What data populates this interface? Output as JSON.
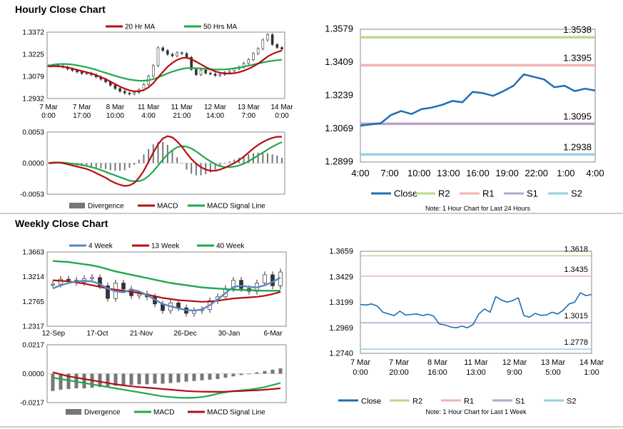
{
  "sections": {
    "hourly_title": "Hourly Close Chart",
    "weekly_title": "Weekly Close Chart"
  },
  "colors": {
    "ma_red": "#b40f14",
    "ma_green": "#1faa4a",
    "ma_blue": "#5b86c0",
    "close_blue": "#1f6eb2",
    "r2": "#bcd98e",
    "r1": "#f2b3b3",
    "s1": "#b9a3cf",
    "s2": "#94d2e0",
    "bar_gray": "#777777",
    "candle": "#333333"
  },
  "chart_data": [
    {
      "id": "hourly_price",
      "type": "line",
      "title": "",
      "legend": [
        "20 Hr MA",
        "50 Hrs MA"
      ],
      "y_ticks": [
        "1.3372",
        "1.3225",
        "1.3079",
        "1.2932"
      ],
      "ylim": [
        1.2932,
        1.3372
      ],
      "x_ticks": [
        [
          "7 Mar",
          "0:00"
        ],
        [
          "7 Mar",
          "17:00"
        ],
        [
          "8 Mar",
          "10:00"
        ],
        [
          "11 Mar",
          "4:00"
        ],
        [
          "11 Mar",
          "21:00"
        ],
        [
          "12 Mar",
          "14:00"
        ],
        [
          "13 Mar",
          "7:00"
        ],
        [
          "14 Mar",
          "0:00"
        ]
      ],
      "x_count": 8,
      "series": [
        {
          "name": "Close",
          "color_key": "candle",
          "values": [
            1.315,
            1.3152,
            1.3148,
            1.314,
            1.3128,
            1.3118,
            1.3108,
            1.3098,
            1.31,
            1.309,
            1.3075,
            1.306,
            1.3042,
            1.302,
            1.2998,
            1.298,
            1.2968,
            1.2962,
            1.2972,
            1.299,
            1.3025,
            1.308,
            1.315,
            1.3268,
            1.325,
            1.3225,
            1.3215,
            1.3235,
            1.323,
            1.3205,
            1.3125,
            1.309,
            1.312,
            1.31,
            1.3095,
            1.3085,
            1.3092,
            1.3105,
            1.3115,
            1.3128,
            1.314,
            1.3165,
            1.319,
            1.323,
            1.3262,
            1.332,
            1.3355,
            1.329,
            1.327,
            1.326
          ]
        },
        {
          "name": "20 Hr MA",
          "color_key": "ma_red",
          "values": [
            1.3145,
            1.3147,
            1.3146,
            1.3143,
            1.3138,
            1.313,
            1.3122,
            1.3114,
            1.3106,
            1.3097,
            1.3087,
            1.3074,
            1.306,
            1.3044,
            1.3027,
            1.3011,
            1.2997,
            1.2986,
            1.298,
            1.298,
            1.2988,
            1.3006,
            1.3034,
            1.3072,
            1.3108,
            1.3142,
            1.3168,
            1.3188,
            1.32,
            1.3203,
            1.3192,
            1.3176,
            1.3158,
            1.314,
            1.3125,
            1.3112,
            1.3103,
            1.3098,
            1.3097,
            1.31,
            1.3106,
            1.3116,
            1.3129,
            1.3145,
            1.3163,
            1.3186,
            1.321,
            1.3227,
            1.324,
            1.325
          ]
        },
        {
          "name": "50 Hrs MA",
          "color_key": "ma_green",
          "values": [
            1.315,
            1.3156,
            1.316,
            1.3161,
            1.316,
            1.3157,
            1.3152,
            1.3146,
            1.3139,
            1.3131,
            1.3122,
            1.3112,
            1.3102,
            1.3092,
            1.3082,
            1.3073,
            1.3065,
            1.3058,
            1.3053,
            1.305,
            1.305,
            1.3053,
            1.306,
            1.3072,
            1.3085,
            1.3098,
            1.311,
            1.312,
            1.3128,
            1.3133,
            1.3134,
            1.3133,
            1.3131,
            1.3128,
            1.3126,
            1.3124,
            1.3124,
            1.3125,
            1.3128,
            1.3132,
            1.3137,
            1.3143,
            1.315,
            1.3157,
            1.3164,
            1.3171,
            1.3177,
            1.3182,
            1.3186,
            1.3189
          ]
        }
      ]
    },
    {
      "id": "hourly_macd",
      "type": "line",
      "legend": [
        "Divergence",
        "MACD",
        "MACD Signal Line"
      ],
      "y_ticks": [
        "0.0053",
        "0.0000",
        "-0.0053"
      ],
      "ylim": [
        -0.0053,
        0.0053
      ],
      "series": [
        {
          "name": "MACD",
          "color_key": "ma_red",
          "values": [
            0.0,
            0.0001,
            0.0001,
            0.0,
            -0.0002,
            -0.0004,
            -0.0006,
            -0.0008,
            -0.001,
            -0.0013,
            -0.0017,
            -0.0021,
            -0.0025,
            -0.003,
            -0.0034,
            -0.0037,
            -0.0039,
            -0.0038,
            -0.0034,
            -0.0025,
            -0.0013,
            0.0002,
            0.0018,
            0.0032,
            0.0042,
            0.0046,
            0.0044,
            0.0037,
            0.0028,
            0.0017,
            0.0007,
            -0.0001,
            -0.0007,
            -0.0011,
            -0.0013,
            -0.0013,
            -0.0011,
            -0.0008,
            -0.0004,
            0.0,
            0.0005,
            0.0011,
            0.0018,
            0.0025,
            0.0031,
            0.0036,
            0.004,
            0.0043,
            0.0045,
            0.0045
          ]
        },
        {
          "name": "MACD Signal Line",
          "color_key": "ma_green",
          "values": [
            0.0,
            0.0,
            0.0001,
            0.0001,
            0.0,
            -0.0001,
            -0.0002,
            -0.0003,
            -0.0005,
            -0.0007,
            -0.0009,
            -0.0012,
            -0.0015,
            -0.0018,
            -0.0021,
            -0.0024,
            -0.0027,
            -0.003,
            -0.0031,
            -0.0031,
            -0.0028,
            -0.0022,
            -0.0014,
            -0.0004,
            0.0006,
            0.0015,
            0.0022,
            0.0027,
            0.0029,
            0.0028,
            0.0025,
            0.002,
            0.0014,
            0.0008,
            0.0003,
            -0.0002,
            -0.0005,
            -0.0007,
            -0.0007,
            -0.0006,
            -0.0004,
            -0.0001,
            0.0003,
            0.0008,
            0.0013,
            0.0018,
            0.0023,
            0.0028,
            0.0032,
            0.0036
          ]
        },
        {
          "name": "Divergence",
          "color_key": "bar_gray",
          "values": [
            0.0,
            0.0001,
            0.0,
            -0.0001,
            -0.0002,
            -0.0003,
            -0.0004,
            -0.0005,
            -0.0005,
            -0.0006,
            -0.0008,
            -0.0009,
            -0.001,
            -0.0012,
            -0.0013,
            -0.0013,
            -0.0012,
            -0.0008,
            -0.0003,
            0.0006,
            0.0015,
            0.0024,
            0.0032,
            0.0036,
            0.0036,
            0.0031,
            0.0022,
            0.001,
            -0.0001,
            -0.0011,
            -0.0018,
            -0.0021,
            -0.0021,
            -0.0019,
            -0.0016,
            -0.0011,
            -0.0006,
            -0.0001,
            0.0003,
            0.0006,
            0.0009,
            0.0012,
            0.0015,
            0.0017,
            0.0018,
            0.0018,
            0.0017,
            0.0015,
            0.0013,
            0.0009
          ]
        }
      ]
    },
    {
      "id": "hourly_pivot",
      "type": "line",
      "y_ticks": [
        "1.3579",
        "1.3409",
        "1.3239",
        "1.3069",
        "1.2899"
      ],
      "ylim": [
        1.2899,
        1.3579
      ],
      "x_ticks": [
        "4:00",
        "7:00",
        "10:00",
        "13:00",
        "16:00",
        "19:00",
        "22:00",
        "1:00",
        "4:00"
      ],
      "levels": [
        {
          "name": "R2",
          "value": 1.3538,
          "label": "1.3538",
          "color_key": "r2"
        },
        {
          "name": "R1",
          "value": 1.3395,
          "label": "1.3395",
          "color_key": "r1"
        },
        {
          "name": "S1",
          "value": 1.3095,
          "label": "1.3095",
          "color_key": "s1"
        },
        {
          "name": "S2",
          "value": 1.2938,
          "label": "1.2938",
          "color_key": "s2"
        }
      ],
      "series": [
        {
          "name": "Close",
          "color_key": "close_blue",
          "values": [
            1.3085,
            1.3092,
            1.3098,
            1.314,
            1.316,
            1.3145,
            1.317,
            1.3178,
            1.3192,
            1.3212,
            1.3205,
            1.3258,
            1.3252,
            1.3238,
            1.3262,
            1.329,
            1.3348,
            1.3335,
            1.3322,
            1.3282,
            1.329,
            1.3262,
            1.3275,
            1.3265
          ]
        }
      ],
      "legend": [
        "Close",
        "R2",
        "R1",
        "S1",
        "S2"
      ],
      "note": "Note: 1 Hour Chart for Last 24 Hours"
    },
    {
      "id": "weekly_price",
      "type": "line",
      "legend": [
        "4 Week",
        "13 Week",
        "40 Week"
      ],
      "y_ticks": [
        "1.3663",
        "1.3214",
        "1.2765",
        "1.2317"
      ],
      "ylim": [
        1.2317,
        1.3663
      ],
      "x_ticks": [
        "12-Sep",
        "17-Oct",
        "21-Nov",
        "26-Dec",
        "30-Jan",
        "6-Mar"
      ],
      "series": [
        {
          "name": "Close",
          "color_key": "candle",
          "values": [
            1.308,
            1.317,
            1.315,
            1.311,
            1.318,
            1.32,
            1.305,
            1.282,
            1.31,
            1.299,
            1.287,
            1.29,
            1.285,
            1.272,
            1.26,
            1.274,
            1.265,
            1.255,
            1.26,
            1.262,
            1.278,
            1.285,
            1.3,
            1.315,
            1.3,
            1.295,
            1.31,
            1.325,
            1.305,
            1.33
          ]
        },
        {
          "name": "4 Week",
          "color_key": "ma_blue",
          "values": [
            1.3,
            1.306,
            1.31,
            1.313,
            1.314,
            1.313,
            1.308,
            1.3,
            1.295,
            1.293,
            1.298,
            1.295,
            1.288,
            1.28,
            1.272,
            1.268,
            1.264,
            1.261,
            1.26,
            1.262,
            1.27,
            1.28,
            1.292,
            1.303,
            1.305,
            1.303,
            1.302,
            1.306,
            1.312,
            1.32
          ]
        },
        {
          "name": "13 Week",
          "color_key": "ma_red",
          "values": [
            1.315,
            1.314,
            1.313,
            1.311,
            1.309,
            1.306,
            1.303,
            1.3,
            1.298,
            1.296,
            1.294,
            1.292,
            1.289,
            1.286,
            1.283,
            1.281,
            1.279,
            1.278,
            1.277,
            1.276,
            1.2765,
            1.278,
            1.28,
            1.282,
            1.283,
            1.284,
            1.285,
            1.287,
            1.29,
            1.294
          ]
        },
        {
          "name": "40 Week",
          "color_key": "ma_green",
          "values": [
            1.35,
            1.349,
            1.348,
            1.346,
            1.344,
            1.342,
            1.339,
            1.335,
            1.331,
            1.328,
            1.325,
            1.322,
            1.319,
            1.316,
            1.313,
            1.31,
            1.308,
            1.306,
            1.304,
            1.302,
            1.301,
            1.3,
            1.299,
            1.298,
            1.2975,
            1.297,
            1.2965,
            1.296,
            1.296,
            1.296
          ]
        }
      ]
    },
    {
      "id": "weekly_macd",
      "type": "line",
      "legend": [
        "Divergence",
        "MACD",
        "MACD Signal Line"
      ],
      "y_ticks": [
        "0.0217",
        "0.0000",
        "-0.0217"
      ],
      "ylim": [
        -0.0217,
        0.0217
      ],
      "series": [
        {
          "name": "MACD",
          "color_key": "ma_green",
          "values": [
            -0.003,
            -0.004,
            -0.005,
            -0.006,
            -0.007,
            -0.008,
            -0.009,
            -0.01,
            -0.011,
            -0.012,
            -0.013,
            -0.014,
            -0.015,
            -0.016,
            -0.017,
            -0.0175,
            -0.018,
            -0.0182,
            -0.018,
            -0.0175,
            -0.0165,
            -0.015,
            -0.014,
            -0.013,
            -0.0125,
            -0.012,
            -0.0112,
            -0.01,
            -0.0085,
            -0.007
          ]
        },
        {
          "name": "MACD Signal Line",
          "color_key": "ma_red",
          "values": [
            0.001,
            -0.0005,
            -0.002,
            -0.003,
            -0.004,
            -0.005,
            -0.006,
            -0.007,
            -0.008,
            -0.0088,
            -0.0095,
            -0.01,
            -0.0105,
            -0.011,
            -0.0115,
            -0.012,
            -0.0125,
            -0.013,
            -0.0133,
            -0.0135,
            -0.0136,
            -0.0136,
            -0.0135,
            -0.0132,
            -0.013,
            -0.0127,
            -0.0125,
            -0.012,
            -0.0115,
            -0.011
          ]
        },
        {
          "name": "Divergence",
          "color_key": "bar_gray",
          "values": [
            -0.013,
            -0.012,
            -0.0115,
            -0.011,
            -0.011,
            -0.0105,
            -0.01,
            -0.0095,
            -0.009,
            -0.0085,
            -0.0085,
            -0.008,
            -0.008,
            -0.0075,
            -0.0075,
            -0.007,
            -0.0065,
            -0.006,
            -0.0055,
            -0.005,
            -0.0045,
            -0.004,
            -0.003,
            -0.002,
            -0.001,
            0.0,
            0.001,
            0.002,
            0.003,
            0.004
          ]
        }
      ]
    },
    {
      "id": "weekly_pivot",
      "type": "line",
      "y_ticks": [
        "1.3659",
        "1.3429",
        "1.3199",
        "1.2969",
        "1.2740"
      ],
      "ylim": [
        1.274,
        1.3659
      ],
      "x_ticks": [
        [
          "7 Mar",
          "0:00"
        ],
        [
          "7 Mar",
          "20:00"
        ],
        [
          "8 Mar",
          "16:00"
        ],
        [
          "11 Mar",
          "13:00"
        ],
        [
          "12 Mar",
          "9:00"
        ],
        [
          "13 Mar",
          "5:00"
        ],
        [
          "14 Mar",
          "1:00"
        ]
      ],
      "levels": [
        {
          "name": "R2",
          "value": 1.3618,
          "label": "1.3618",
          "color_key": "r2"
        },
        {
          "name": "R1",
          "value": 1.3435,
          "label": "1.3435",
          "color_key": "r1"
        },
        {
          "name": "S1",
          "value": 1.3015,
          "label": "1.3015",
          "color_key": "s1"
        },
        {
          "name": "S2",
          "value": 1.2778,
          "label": "1.2778",
          "color_key": "s2"
        }
      ],
      "series": [
        {
          "name": "Close",
          "color_key": "close_blue",
          "values": [
            1.318,
            1.3175,
            1.3185,
            1.3165,
            1.311,
            1.3095,
            1.308,
            1.312,
            1.3085,
            1.309,
            1.3095,
            1.308,
            1.3092,
            1.3075,
            1.3005,
            1.2995,
            1.2978,
            1.297,
            1.2985,
            1.297,
            1.3,
            1.3095,
            1.314,
            1.311,
            1.325,
            1.322,
            1.32,
            1.3215,
            1.324,
            1.308,
            1.3065,
            1.31,
            1.3082,
            1.3085,
            1.311,
            1.3095,
            1.313,
            1.3185,
            1.32,
            1.3285,
            1.326,
            1.327
          ]
        }
      ],
      "legend": [
        "Close",
        "R2",
        "R1",
        "S1",
        "S2"
      ],
      "note": "Note: 1 Hour Chart for Last 1 Week"
    }
  ]
}
